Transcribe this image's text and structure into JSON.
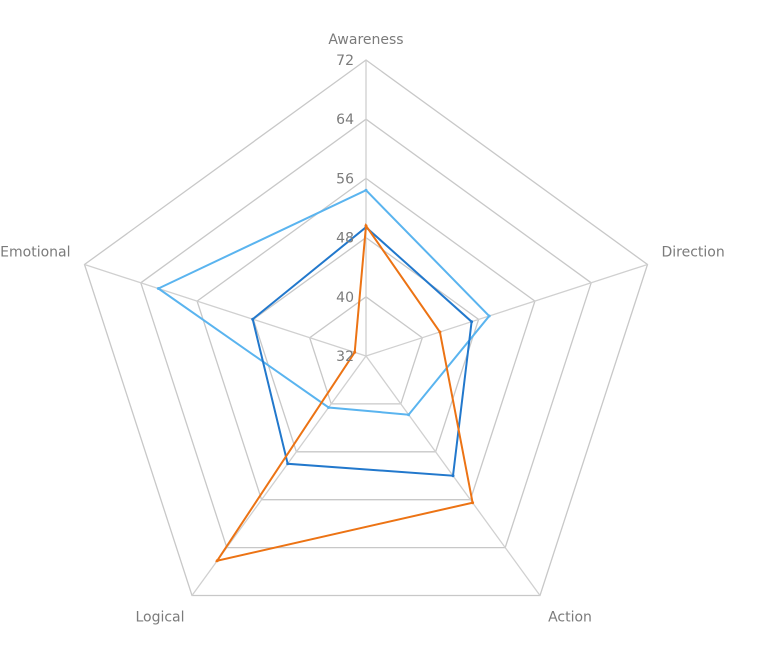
{
  "chart_data": {
    "type": "radar",
    "title": "",
    "axes": [
      "Awareness",
      "Direction",
      "Action",
      "Logical",
      "Emotional"
    ],
    "r_min": 32,
    "r_max": 72,
    "r_step": 8,
    "tick_labels": [
      "32",
      "40",
      "48",
      "56",
      "64",
      "72"
    ],
    "grid": true,
    "legend": "none",
    "series": [
      {
        "color": "#5ab4ef",
        "values": [
          54.4,
          49.5,
          41.8,
          40.6,
          61.5
        ]
      },
      {
        "color": "#2278cc",
        "values": [
          49.4,
          47.0,
          52.0,
          50.0,
          48.1
        ]
      },
      {
        "color": "#ec7314",
        "values": [
          49.6,
          42.5,
          56.5,
          66.2,
          33.6
        ]
      }
    ]
  }
}
